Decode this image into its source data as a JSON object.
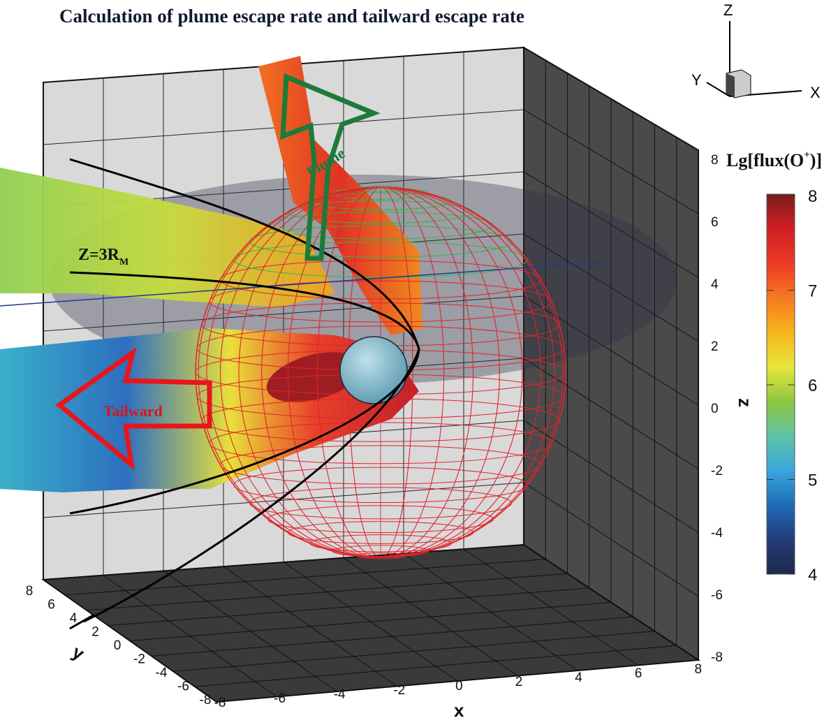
{
  "chart_data": {
    "type": "3d-surface",
    "title": "Calculation of plume escape rate and tailward escape rate",
    "xlabel": "x",
    "ylabel": "y",
    "zlabel": "z",
    "xlim": [
      -8,
      8
    ],
    "ylim": [
      -8,
      8
    ],
    "zlim": [
      -8,
      8
    ],
    "x_ticks": [
      "-8",
      "-6",
      "-4",
      "-2",
      "0",
      "2",
      "4",
      "6",
      "8"
    ],
    "y_ticks": [
      "8",
      "6",
      "4",
      "2",
      "0",
      "-2",
      "-4",
      "-6",
      "-8"
    ],
    "z_ticks": [
      "8",
      "6",
      "4",
      "2",
      "0",
      "-2",
      "-4",
      "-6",
      "-8"
    ],
    "colorbar": {
      "label_main": "Lg[flux(O",
      "label_sup": "+",
      "label_end": ")]",
      "range": [
        4,
        8
      ],
      "ticks": [
        "8",
        "7",
        "6",
        "5",
        "4"
      ],
      "colormap": [
        "#7a1c1c",
        "#d01f24",
        "#ee3a24",
        "#f47a20",
        "#f7b51c",
        "#e6e63c",
        "#8dc63f",
        "#5fc3a6",
        "#3aa6dc",
        "#1e6bb8",
        "#233a7a",
        "#1d2a4a"
      ]
    },
    "annotations": {
      "plume": "Plume",
      "tailward": "Tailward",
      "z_plane": "Z=3R",
      "z_plane_sub": "M"
    },
    "orientation_triad": {
      "x": "X",
      "y": "Y",
      "z": "Z"
    },
    "grid": true
  }
}
